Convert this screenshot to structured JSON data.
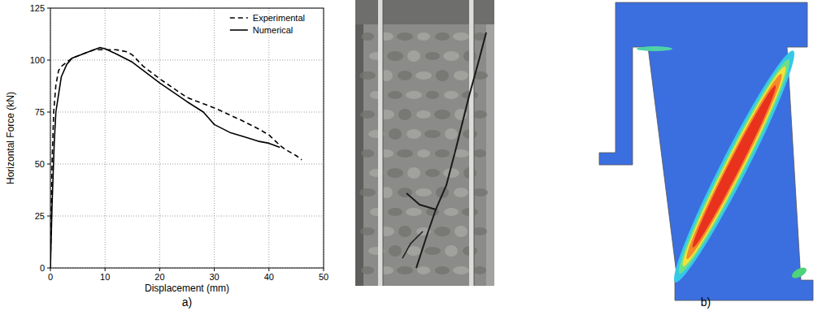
{
  "chart_data": {
    "type": "line",
    "x_label": "Displacement (mm)",
    "y_label": "Horizontal Force (kN)",
    "annotations": [
      "a)",
      "b)"
    ],
    "xlim": [
      0,
      50
    ],
    "xticks": [
      0,
      10,
      20,
      30,
      40,
      50
    ],
    "ylim": [
      0,
      125
    ],
    "yticks": [
      0,
      25,
      50,
      75,
      100,
      125
    ],
    "grid": true,
    "legend": "top-right",
    "series": [
      {
        "name": "Experimental",
        "color": "#000000",
        "line_style": "dashed",
        "x": [
          0,
          0.3,
          0.6,
          1,
          1.5,
          2,
          3,
          4,
          6,
          8,
          10,
          12,
          14,
          15,
          17,
          20,
          25,
          30,
          35,
          38,
          40,
          42,
          43,
          45,
          46
        ],
        "values": [
          0,
          50,
          75,
          88,
          95,
          97,
          99,
          101,
          103,
          105,
          105,
          105,
          104,
          102.5,
          97,
          91,
          82,
          77,
          71,
          67,
          64,
          59,
          57,
          54,
          52
        ]
      },
      {
        "name": "Numerical",
        "color": "#000000",
        "line_style": "solid",
        "x": [
          0,
          0.3,
          0.7,
          1,
          2,
          3,
          4,
          5,
          7,
          9,
          10,
          12,
          15,
          20,
          25,
          28,
          30,
          33,
          35,
          38,
          40,
          41,
          42
        ],
        "values": [
          0,
          30,
          60,
          75,
          92,
          98,
          101,
          102,
          104,
          106,
          105.5,
          103,
          99,
          89,
          80,
          75,
          69,
          65,
          63.5,
          61,
          60,
          59,
          58
        ]
      }
    ]
  }
}
